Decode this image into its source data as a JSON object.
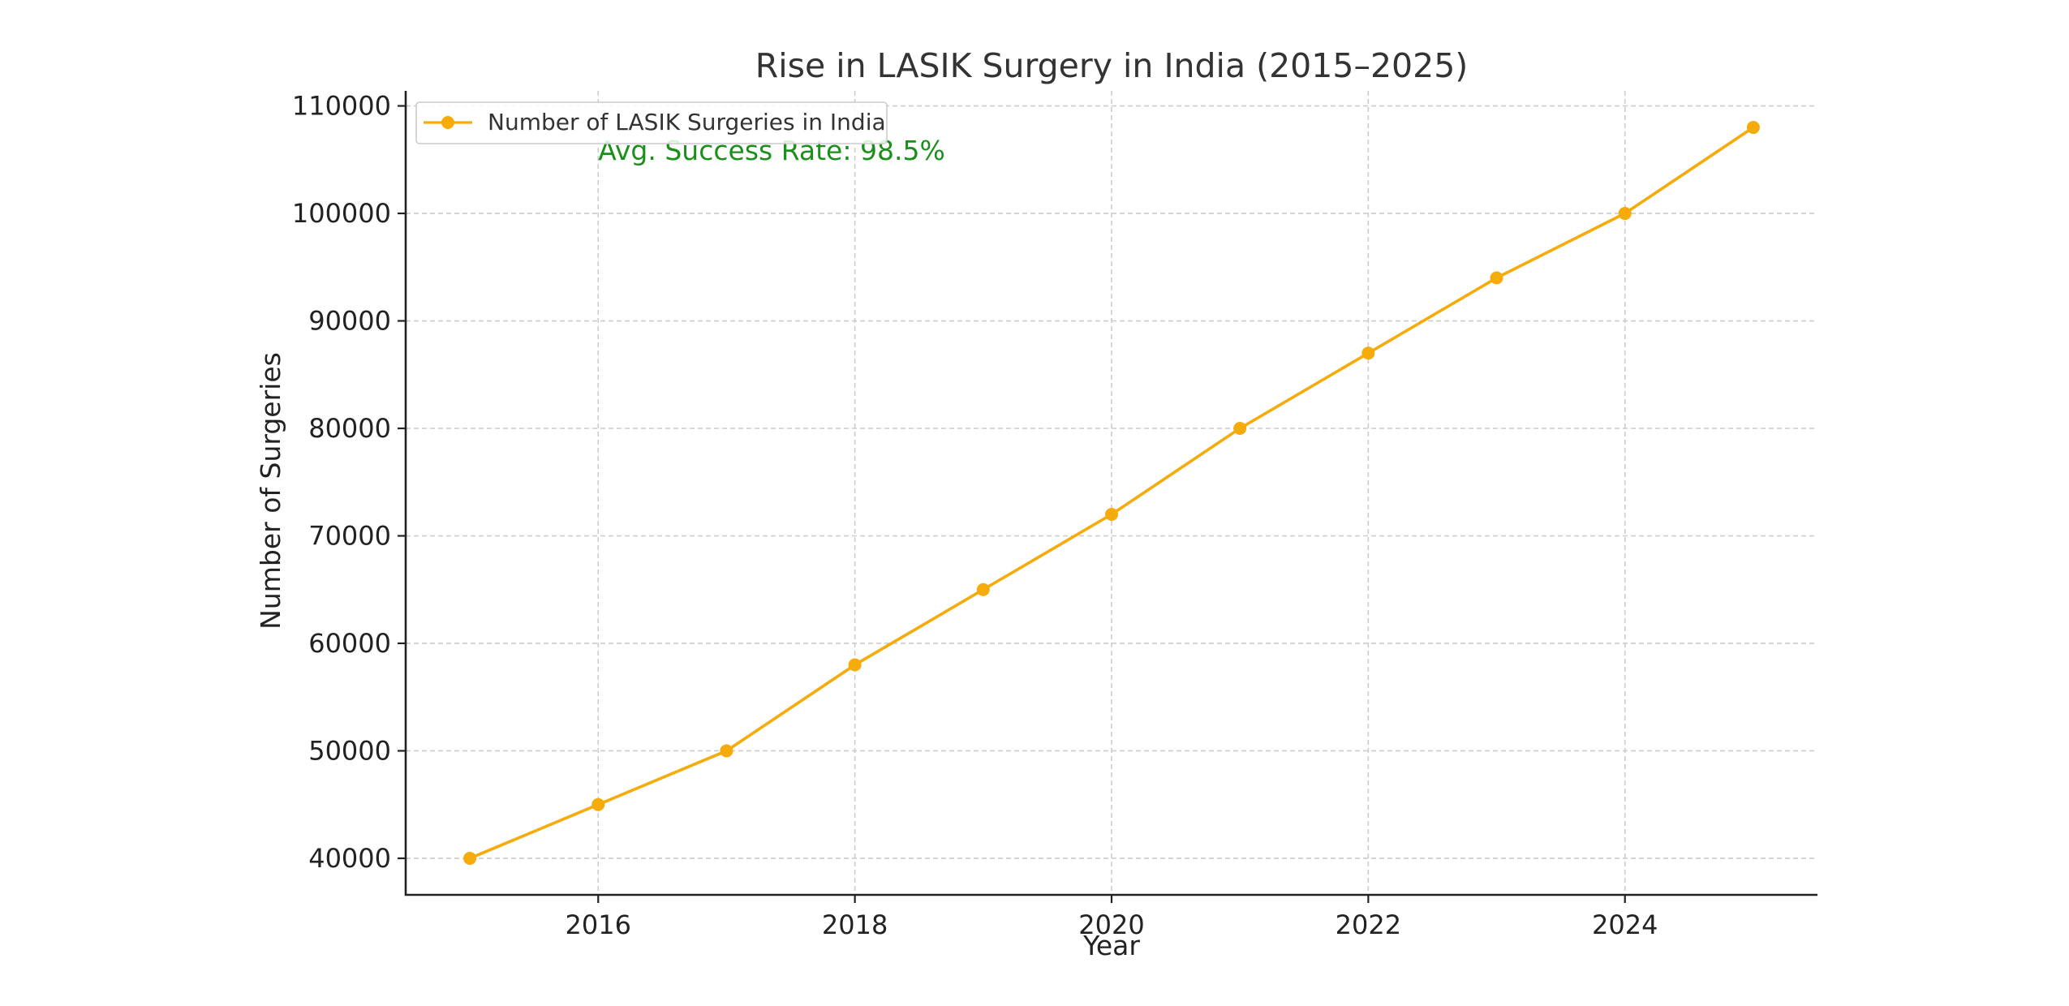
{
  "chart_data": {
    "type": "line",
    "title": "Rise in LASIK Surgery in India (2015–2025)",
    "xlabel": "Year",
    "ylabel": "Number of Surgeries",
    "x": [
      2015,
      2016,
      2017,
      2018,
      2019,
      2020,
      2021,
      2022,
      2023,
      2024,
      2025
    ],
    "series": [
      {
        "name": "Number of LASIK Surgeries in India",
        "values": [
          40000,
          45000,
          50000,
          58000,
          65000,
          72000,
          80000,
          87000,
          94000,
          100000,
          108000
        ],
        "color": "#f5ab0a"
      }
    ],
    "xticks": [
      2016,
      2018,
      2020,
      2022,
      2024
    ],
    "yticks": [
      40000,
      50000,
      60000,
      70000,
      80000,
      90000,
      100000,
      110000
    ],
    "xlim": [
      2014.5,
      2025.5
    ],
    "ylim": [
      36600,
      111400
    ],
    "grid": true,
    "legend_position": "top-left",
    "annotation": {
      "text": "Avg. Success Rate: 98.5%",
      "x": 2016,
      "y": 105800,
      "color": "#1a8f1a"
    }
  }
}
